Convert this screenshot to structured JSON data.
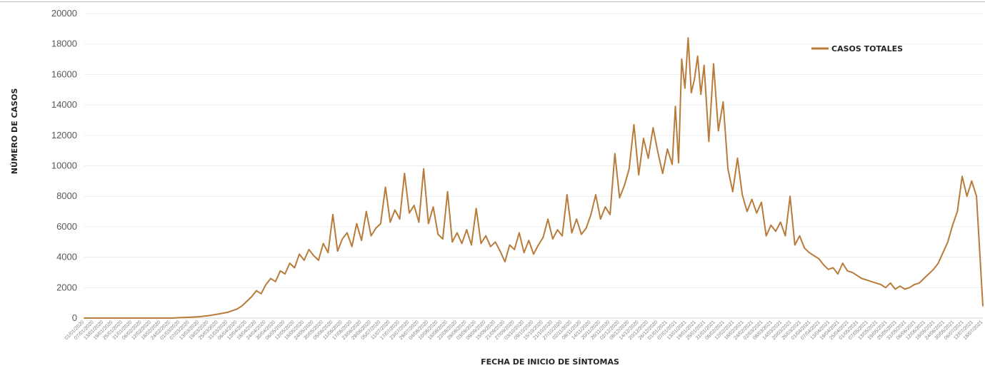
{
  "chart_data": {
    "type": "line",
    "title": "",
    "xlabel": "FECHA DE INICIO DE SÍNTOMAS",
    "ylabel": "NÚMERO DE CASOS",
    "ylim": [
      0,
      20000
    ],
    "yticks": [
      0,
      2000,
      4000,
      6000,
      8000,
      10000,
      12000,
      14000,
      16000,
      18000,
      20000
    ],
    "grid": true,
    "legend_position": "top-right",
    "x_range": [
      "2020-01-01",
      "2021-07-18"
    ],
    "x_tick_labels": [
      "01/01/2020",
      "07/01/2020",
      "13/01/2020",
      "19/01/2020",
      "25/01/2020",
      "31/01/2020",
      "06/02/2020",
      "12/02/2020",
      "18/02/2020",
      "24/02/2020",
      "01/03/2020",
      "07/03/2020",
      "13/03/2020",
      "19/03/2020",
      "25/03/2020",
      "31/03/2020",
      "06/04/2020",
      "12/04/2020",
      "18/04/2020",
      "24/04/2020",
      "30/04/2020",
      "06/05/2020",
      "12/05/2020",
      "18/05/2020",
      "24/05/2020",
      "30/05/2020",
      "05/06/2020",
      "11/06/2020",
      "17/06/2020",
      "23/06/2020",
      "29/06/2020",
      "05/07/2020",
      "11/07/2020",
      "17/07/2020",
      "23/07/2020",
      "29/07/2020",
      "04/08/2020",
      "10/08/2020",
      "16/08/2020",
      "22/08/2020",
      "28/08/2020",
      "03/09/2020",
      "09/09/2020",
      "15/09/2020",
      "21/09/2020",
      "27/09/2020",
      "03/10/2020",
      "09/10/2020",
      "15/10/2020",
      "21/10/2020",
      "27/10/2020",
      "02/11/2020",
      "08/11/2020",
      "14/11/2020",
      "20/11/2020",
      "26/11/2020",
      "02/12/2020",
      "08/12/2020",
      "14/12/2020",
      "20/12/2020",
      "26/12/2020",
      "01/01/2021",
      "07/01/2021",
      "13/01/2021",
      "19/01/2021",
      "25/01/2021",
      "31/01/2021",
      "06/02/2021",
      "12/02/2021",
      "18/02/2021",
      "24/02/2021",
      "02/03/2021",
      "08/03/2021",
      "14/03/2021",
      "20/03/2021",
      "26/03/2021",
      "01/04/2021",
      "07/04/2021",
      "13/04/2021",
      "19/04/2021",
      "25/04/2021",
      "01/05/2021",
      "07/05/2021",
      "13/05/2021",
      "19/05/2021",
      "25/05/2021",
      "31/05/2021",
      "06/06/2021",
      "12/06/2021",
      "18/06/2021",
      "24/06/2021",
      "30/06/2021",
      "06/07/2021",
      "12/07/2021",
      "18/07/2021"
    ],
    "series": [
      {
        "name": "CASOS TOTALES",
        "color": "#b87b3a",
        "x": [
          "2020-01-01",
          "2020-02-01",
          "2020-02-25",
          "2020-03-01",
          "2020-03-07",
          "2020-03-13",
          "2020-03-19",
          "2020-03-25",
          "2020-03-31",
          "2020-04-06",
          "2020-04-09",
          "2020-04-12",
          "2020-04-15",
          "2020-04-18",
          "2020-04-21",
          "2020-04-24",
          "2020-04-27",
          "2020-04-30",
          "2020-05-03",
          "2020-05-06",
          "2020-05-09",
          "2020-05-12",
          "2020-05-15",
          "2020-05-18",
          "2020-05-21",
          "2020-05-24",
          "2020-05-27",
          "2020-05-30",
          "2020-06-02",
          "2020-06-05",
          "2020-06-08",
          "2020-06-11",
          "2020-06-14",
          "2020-06-17",
          "2020-06-20",
          "2020-06-23",
          "2020-06-26",
          "2020-06-29",
          "2020-07-02",
          "2020-07-05",
          "2020-07-08",
          "2020-07-11",
          "2020-07-14",
          "2020-07-17",
          "2020-07-20",
          "2020-07-23",
          "2020-07-26",
          "2020-07-29",
          "2020-08-01",
          "2020-08-04",
          "2020-08-07",
          "2020-08-10",
          "2020-08-13",
          "2020-08-16",
          "2020-08-19",
          "2020-08-22",
          "2020-08-25",
          "2020-08-28",
          "2020-08-31",
          "2020-09-03",
          "2020-09-06",
          "2020-09-09",
          "2020-09-12",
          "2020-09-15",
          "2020-09-18",
          "2020-09-21",
          "2020-09-24",
          "2020-09-27",
          "2020-09-30",
          "2020-10-03",
          "2020-10-06",
          "2020-10-09",
          "2020-10-12",
          "2020-10-15",
          "2020-10-18",
          "2020-10-21",
          "2020-10-24",
          "2020-10-27",
          "2020-10-30",
          "2020-11-02",
          "2020-11-05",
          "2020-11-08",
          "2020-11-11",
          "2020-11-14",
          "2020-11-17",
          "2020-11-20",
          "2020-11-23",
          "2020-11-26",
          "2020-11-29",
          "2020-12-02",
          "2020-12-05",
          "2020-12-08",
          "2020-12-11",
          "2020-12-14",
          "2020-12-17",
          "2020-12-20",
          "2020-12-23",
          "2020-12-26",
          "2020-12-29",
          "2021-01-01",
          "2021-01-04",
          "2021-01-06",
          "2021-01-08",
          "2021-01-10",
          "2021-01-12",
          "2021-01-14",
          "2021-01-16",
          "2021-01-18",
          "2021-01-20",
          "2021-01-22",
          "2021-01-24",
          "2021-01-27",
          "2021-01-30",
          "2021-02-02",
          "2021-02-05",
          "2021-02-08",
          "2021-02-11",
          "2021-02-14",
          "2021-02-17",
          "2021-02-20",
          "2021-02-23",
          "2021-02-26",
          "2021-03-01",
          "2021-03-04",
          "2021-03-07",
          "2021-03-10",
          "2021-03-13",
          "2021-03-16",
          "2021-03-19",
          "2021-03-22",
          "2021-03-25",
          "2021-03-28",
          "2021-03-31",
          "2021-04-03",
          "2021-04-06",
          "2021-04-09",
          "2021-04-12",
          "2021-04-15",
          "2021-04-18",
          "2021-04-21",
          "2021-04-24",
          "2021-04-27",
          "2021-04-30",
          "2021-05-03",
          "2021-05-06",
          "2021-05-09",
          "2021-05-12",
          "2021-05-15",
          "2021-05-18",
          "2021-05-21",
          "2021-05-24",
          "2021-05-27",
          "2021-05-30",
          "2021-06-02",
          "2021-06-05",
          "2021-06-08",
          "2021-06-11",
          "2021-06-14",
          "2021-06-17",
          "2021-06-20",
          "2021-06-23",
          "2021-06-26",
          "2021-06-29",
          "2021-07-02",
          "2021-07-05",
          "2021-07-08",
          "2021-07-11",
          "2021-07-14",
          "2021-07-18"
        ],
        "values": [
          0,
          0,
          0,
          30,
          50,
          90,
          160,
          260,
          380,
          600,
          800,
          1100,
          1400,
          1800,
          1600,
          2200,
          2600,
          2400,
          3100,
          2900,
          3600,
          3300,
          4200,
          3800,
          4500,
          4100,
          3800,
          4900,
          4300,
          6800,
          4400,
          5200,
          5600,
          4700,
          6200,
          5100,
          7000,
          5400,
          5900,
          6200,
          8600,
          6300,
          7100,
          6500,
          9500,
          6900,
          7400,
          6300,
          9800,
          6200,
          7300,
          5500,
          5200,
          8300,
          5000,
          5600,
          4900,
          5800,
          4800,
          7200,
          4900,
          5400,
          4700,
          5000,
          4400,
          3700,
          4800,
          4500,
          5600,
          4300,
          5100,
          4200,
          4800,
          5300,
          6500,
          5200,
          5800,
          5400,
          8100,
          5600,
          6500,
          5500,
          5900,
          6800,
          8100,
          6500,
          7300,
          6800,
          10800,
          7900,
          8700,
          9800,
          12700,
          9400,
          11800,
          10500,
          12500,
          10900,
          9500,
          11100,
          10100,
          13900,
          10200,
          17000,
          15100,
          18400,
          14800,
          15700,
          17200,
          14700,
          16600,
          11600,
          16700,
          12300,
          14200,
          9800,
          8300,
          10500,
          8100,
          7000,
          7800,
          6900,
          7600,
          5400,
          6100,
          5700,
          6300,
          5400,
          8000,
          4800,
          5400,
          4600,
          4300,
          4100,
          3900,
          3500,
          3200,
          3300,
          2900,
          3600,
          3100,
          3000,
          2800,
          2600,
          2500,
          2400,
          2300,
          2200,
          2000,
          2300,
          1900,
          2100,
          1900,
          2000,
          2200,
          2300,
          2600,
          2900,
          3200,
          3600,
          4300,
          5000,
          6100,
          7000,
          9300,
          8000,
          9000,
          8000,
          800
        ]
      }
    ]
  }
}
